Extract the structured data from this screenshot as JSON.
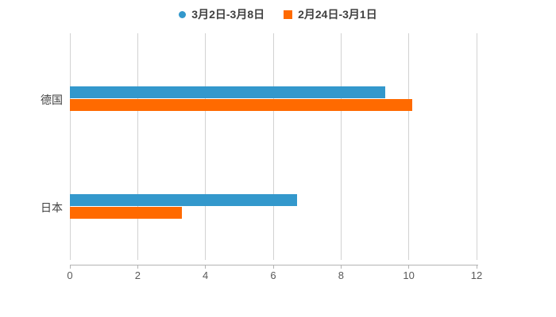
{
  "background": "#ffffff",
  "colors": {
    "series_blue": "#3398cc",
    "series_orange": "#ff6a00",
    "gridline": "#d2d2d2",
    "axis_line": "#b3b3b3",
    "tick_label": "#595959",
    "category_label": "#404040",
    "legend_label": "#404040"
  },
  "legend": {
    "position": "top-center",
    "items": [
      {
        "label": "3月2日-3月8日",
        "marker": "circle",
        "color": "#3398cc"
      },
      {
        "label": "2月24日-3月1日",
        "marker": "square",
        "color": "#ff6a00"
      }
    ]
  },
  "chart_data": {
    "type": "bar",
    "orientation": "horizontal",
    "title": "",
    "xlabel": "",
    "ylabel": "",
    "categories": [
      "德国",
      "日本"
    ],
    "series": [
      {
        "name": "3月2日-3月8日",
        "color": "#3398cc",
        "values": [
          9.3,
          6.7
        ]
      },
      {
        "name": "2月24日-3月1日",
        "color": "#ff6a00",
        "values": [
          10.1,
          3.3
        ]
      }
    ],
    "xlim": [
      0,
      12
    ],
    "xticks": [
      0,
      2,
      4,
      6,
      8,
      10,
      12
    ],
    "grid": true,
    "legend_position": "top"
  }
}
